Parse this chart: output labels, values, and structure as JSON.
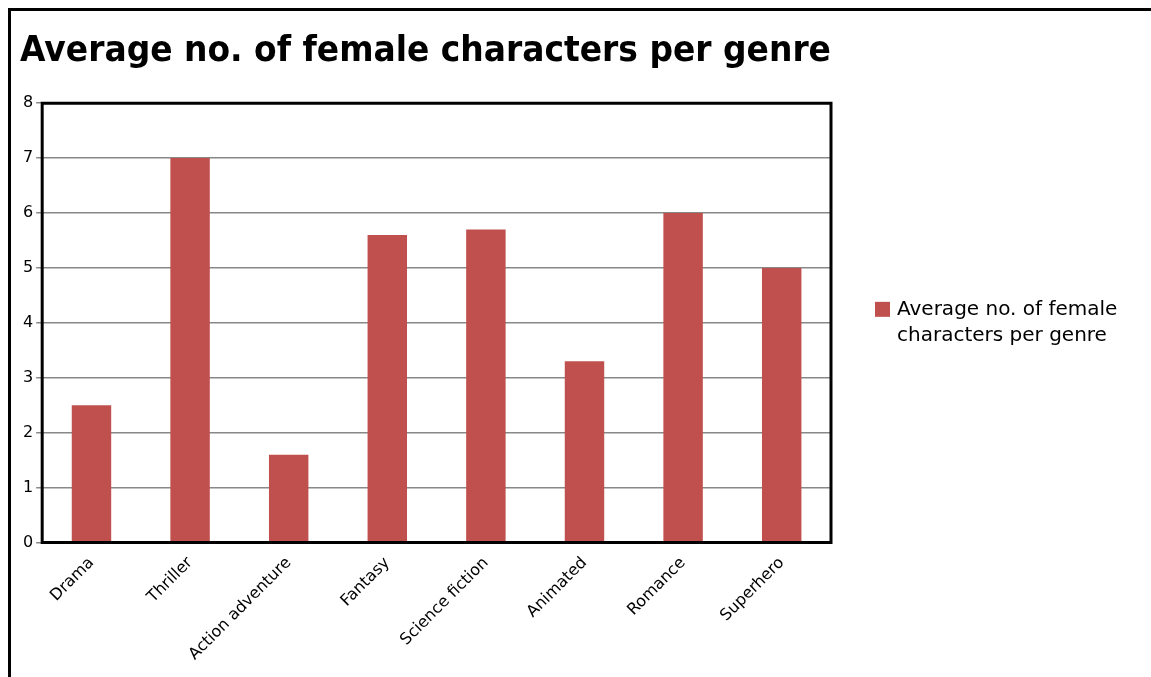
{
  "chart_data": {
    "type": "bar",
    "title": "Average no. of female characters per genre",
    "categories": [
      "Drama",
      "Thriller",
      "Action adventure",
      "Fantasy",
      "Science fiction",
      "Animated",
      "Romance",
      "Superhero"
    ],
    "series": [
      {
        "name": "Average no. of female characters per genre",
        "color": "#c0504d",
        "values": [
          2.5,
          7,
          1.6,
          5.6,
          5.7,
          3.3,
          6,
          5
        ]
      }
    ],
    "ylim": [
      0,
      8
    ],
    "yticks": [
      0,
      1,
      2,
      3,
      4,
      5,
      6,
      7,
      8
    ],
    "grid": "y",
    "legend": "right"
  }
}
